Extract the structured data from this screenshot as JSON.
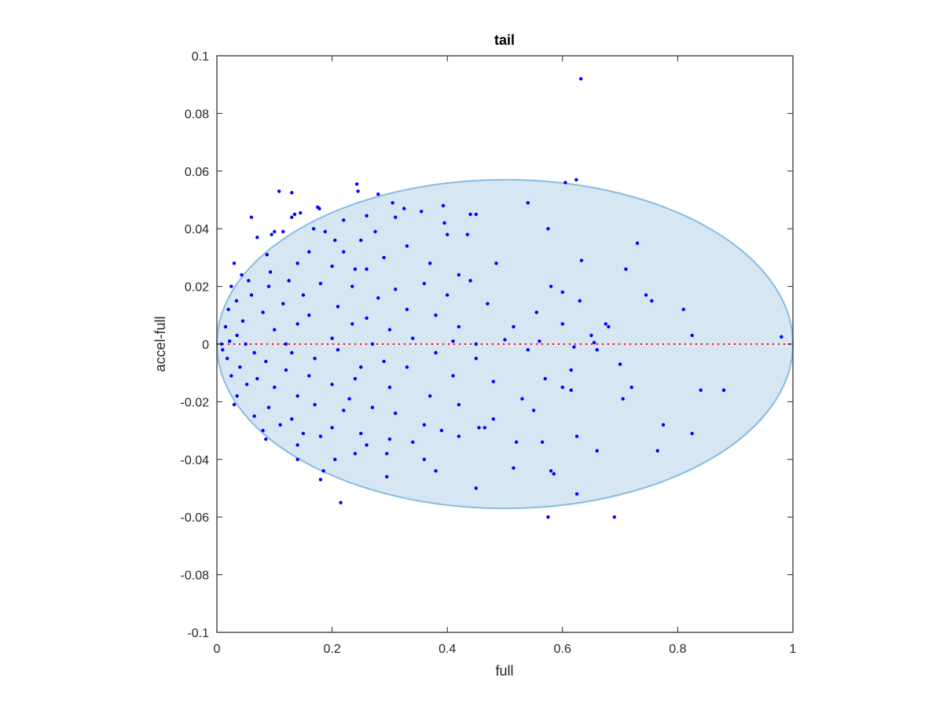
{
  "chart_data": {
    "type": "scatter",
    "title": "tail",
    "xlabel": "full",
    "ylabel": "accel-full",
    "xlim": [
      0,
      1
    ],
    "ylim": [
      -0.1,
      0.1
    ],
    "xticks": [
      0,
      0.2,
      0.4,
      0.6,
      0.8,
      1
    ],
    "xtick_labels": [
      "0",
      "0.2",
      "0.4",
      "0.6",
      "0.8",
      "1"
    ],
    "yticks": [
      -0.1,
      -0.08,
      -0.06,
      -0.04,
      -0.02,
      0,
      0.02,
      0.04,
      0.06,
      0.08,
      0.1
    ],
    "ytick_labels": [
      "-0.1",
      "-0.08",
      "-0.06",
      "-0.04",
      "-0.02",
      "0",
      "0.02",
      "0.04",
      "0.06",
      "0.08",
      "0.1"
    ],
    "grid": false,
    "colors": {
      "points": "#0000ff",
      "ellipse_fill": "#d6e6f3",
      "ellipse_edge": "#88bde0",
      "reference_line": "#ff0000",
      "axes": "#262626"
    },
    "reference_line": {
      "y": 0,
      "style": "dotted"
    },
    "ellipse": {
      "cx": 0.5,
      "cy": 0,
      "rx": 0.5,
      "ry": 0.057
    },
    "points": [
      [
        0.632,
        0.092
      ],
      [
        0.624,
        0.057
      ],
      [
        0.605,
        0.056
      ],
      [
        0.243,
        0.0555
      ],
      [
        0.245,
        0.053
      ],
      [
        0.108,
        0.053
      ],
      [
        0.13,
        0.0525
      ],
      [
        0.28,
        0.052
      ],
      [
        0.305,
        0.049
      ],
      [
        0.54,
        0.049
      ],
      [
        0.175,
        0.0475
      ],
      [
        0.178,
        0.047
      ],
      [
        0.325,
        0.047
      ],
      [
        0.135,
        0.045
      ],
      [
        0.145,
        0.0455
      ],
      [
        0.26,
        0.0445
      ],
      [
        0.355,
        0.046
      ],
      [
        0.44,
        0.045
      ],
      [
        0.45,
        0.045
      ],
      [
        0.393,
        0.048
      ],
      [
        0.06,
        0.044
      ],
      [
        0.13,
        0.044
      ],
      [
        0.22,
        0.043
      ],
      [
        0.31,
        0.044
      ],
      [
        0.395,
        0.042
      ],
      [
        0.575,
        0.04
      ],
      [
        0.1,
        0.039
      ],
      [
        0.168,
        0.04
      ],
      [
        0.188,
        0.039
      ],
      [
        0.275,
        0.039
      ],
      [
        0.4,
        0.038
      ],
      [
        0.435,
        0.038
      ],
      [
        0.095,
        0.038
      ],
      [
        0.115,
        0.039
      ],
      [
        0.07,
        0.037
      ],
      [
        0.205,
        0.036
      ],
      [
        0.25,
        0.036
      ],
      [
        0.33,
        0.034
      ],
      [
        0.73,
        0.035
      ],
      [
        0.087,
        0.031
      ],
      [
        0.16,
        0.032
      ],
      [
        0.22,
        0.032
      ],
      [
        0.29,
        0.03
      ],
      [
        0.37,
        0.028
      ],
      [
        0.633,
        0.029
      ],
      [
        0.485,
        0.028
      ],
      [
        0.03,
        0.028
      ],
      [
        0.14,
        0.028
      ],
      [
        0.2,
        0.027
      ],
      [
        0.26,
        0.026
      ],
      [
        0.043,
        0.024
      ],
      [
        0.093,
        0.025
      ],
      [
        0.24,
        0.026
      ],
      [
        0.71,
        0.026
      ],
      [
        0.42,
        0.024
      ],
      [
        0.055,
        0.022
      ],
      [
        0.125,
        0.022
      ],
      [
        0.18,
        0.021
      ],
      [
        0.36,
        0.021
      ],
      [
        0.44,
        0.022
      ],
      [
        0.025,
        0.02
      ],
      [
        0.09,
        0.02
      ],
      [
        0.235,
        0.02
      ],
      [
        0.31,
        0.019
      ],
      [
        0.58,
        0.02
      ],
      [
        0.06,
        0.017
      ],
      [
        0.15,
        0.017
      ],
      [
        0.28,
        0.016
      ],
      [
        0.4,
        0.017
      ],
      [
        0.6,
        0.018
      ],
      [
        0.745,
        0.017
      ],
      [
        0.755,
        0.015
      ],
      [
        0.81,
        0.012
      ],
      [
        0.034,
        0.015
      ],
      [
        0.115,
        0.014
      ],
      [
        0.21,
        0.013
      ],
      [
        0.33,
        0.012
      ],
      [
        0.47,
        0.014
      ],
      [
        0.63,
        0.015
      ],
      [
        0.02,
        0.012
      ],
      [
        0.08,
        0.011
      ],
      [
        0.16,
        0.01
      ],
      [
        0.26,
        0.009
      ],
      [
        0.38,
        0.01
      ],
      [
        0.555,
        0.011
      ],
      [
        0.045,
        0.008
      ],
      [
        0.14,
        0.007
      ],
      [
        0.235,
        0.007
      ],
      [
        0.42,
        0.006
      ],
      [
        0.6,
        0.007
      ],
      [
        0.675,
        0.007
      ],
      [
        0.68,
        0.006
      ],
      [
        0.015,
        0.006
      ],
      [
        0.1,
        0.005
      ],
      [
        0.3,
        0.005
      ],
      [
        0.515,
        0.006
      ],
      [
        0.65,
        0.003
      ],
      [
        0.825,
        0.003
      ],
      [
        0.98,
        0.0025
      ],
      [
        0.035,
        0.003
      ],
      [
        0.2,
        0.002
      ],
      [
        0.34,
        0.002
      ],
      [
        0.41,
        0.001
      ],
      [
        0.5,
        0.0015
      ],
      [
        0.56,
        0.001
      ],
      [
        0.655,
        0.0005
      ],
      [
        0.008,
        0.0
      ],
      [
        0.022,
        0.001
      ],
      [
        0.05,
        0.0
      ],
      [
        0.12,
        0.0
      ],
      [
        0.27,
        0.0
      ],
      [
        0.45,
        0.0
      ],
      [
        0.62,
        -0.001
      ],
      [
        0.01,
        -0.002
      ],
      [
        0.065,
        -0.003
      ],
      [
        0.13,
        -0.003
      ],
      [
        0.21,
        -0.002
      ],
      [
        0.38,
        -0.003
      ],
      [
        0.54,
        -0.002
      ],
      [
        0.66,
        -0.002
      ],
      [
        0.018,
        -0.005
      ],
      [
        0.085,
        -0.006
      ],
      [
        0.17,
        -0.005
      ],
      [
        0.29,
        -0.006
      ],
      [
        0.45,
        -0.005
      ],
      [
        0.7,
        -0.007
      ],
      [
        0.04,
        -0.008
      ],
      [
        0.12,
        -0.009
      ],
      [
        0.25,
        -0.008
      ],
      [
        0.33,
        -0.008
      ],
      [
        0.615,
        -0.009
      ],
      [
        0.025,
        -0.011
      ],
      [
        0.07,
        -0.012
      ],
      [
        0.16,
        -0.011
      ],
      [
        0.24,
        -0.012
      ],
      [
        0.41,
        -0.011
      ],
      [
        0.57,
        -0.012
      ],
      [
        0.052,
        -0.014
      ],
      [
        0.1,
        -0.015
      ],
      [
        0.2,
        -0.014
      ],
      [
        0.3,
        -0.015
      ],
      [
        0.48,
        -0.013
      ],
      [
        0.6,
        -0.015
      ],
      [
        0.615,
        -0.016
      ],
      [
        0.72,
        -0.015
      ],
      [
        0.84,
        -0.016
      ],
      [
        0.88,
        -0.016
      ],
      [
        0.035,
        -0.018
      ],
      [
        0.14,
        -0.018
      ],
      [
        0.23,
        -0.019
      ],
      [
        0.37,
        -0.018
      ],
      [
        0.53,
        -0.019
      ],
      [
        0.705,
        -0.019
      ],
      [
        0.03,
        -0.021
      ],
      [
        0.09,
        -0.022
      ],
      [
        0.17,
        -0.021
      ],
      [
        0.27,
        -0.022
      ],
      [
        0.42,
        -0.021
      ],
      [
        0.55,
        -0.023
      ],
      [
        0.065,
        -0.025
      ],
      [
        0.13,
        -0.026
      ],
      [
        0.22,
        -0.023
      ],
      [
        0.31,
        -0.024
      ],
      [
        0.48,
        -0.026
      ],
      [
        0.11,
        -0.028
      ],
      [
        0.2,
        -0.029
      ],
      [
        0.36,
        -0.028
      ],
      [
        0.455,
        -0.029
      ],
      [
        0.465,
        -0.029
      ],
      [
        0.775,
        -0.028
      ],
      [
        0.08,
        -0.03
      ],
      [
        0.15,
        -0.031
      ],
      [
        0.25,
        -0.031
      ],
      [
        0.39,
        -0.03
      ],
      [
        0.825,
        -0.031
      ],
      [
        0.085,
        -0.033
      ],
      [
        0.18,
        -0.032
      ],
      [
        0.3,
        -0.033
      ],
      [
        0.42,
        -0.032
      ],
      [
        0.625,
        -0.032
      ],
      [
        0.14,
        -0.035
      ],
      [
        0.26,
        -0.035
      ],
      [
        0.34,
        -0.034
      ],
      [
        0.52,
        -0.034
      ],
      [
        0.565,
        -0.034
      ],
      [
        0.66,
        -0.037
      ],
      [
        0.765,
        -0.037
      ],
      [
        0.24,
        -0.038
      ],
      [
        0.295,
        -0.038
      ],
      [
        0.205,
        -0.04
      ],
      [
        0.36,
        -0.04
      ],
      [
        0.14,
        -0.04
      ],
      [
        0.515,
        -0.043
      ],
      [
        0.58,
        -0.044
      ],
      [
        0.185,
        -0.044
      ],
      [
        0.38,
        -0.044
      ],
      [
        0.585,
        -0.045
      ],
      [
        0.18,
        -0.047
      ],
      [
        0.295,
        -0.046
      ],
      [
        0.45,
        -0.05
      ],
      [
        0.625,
        -0.052
      ],
      [
        0.215,
        -0.055
      ],
      [
        0.575,
        -0.06
      ],
      [
        0.69,
        -0.06
      ]
    ]
  }
}
